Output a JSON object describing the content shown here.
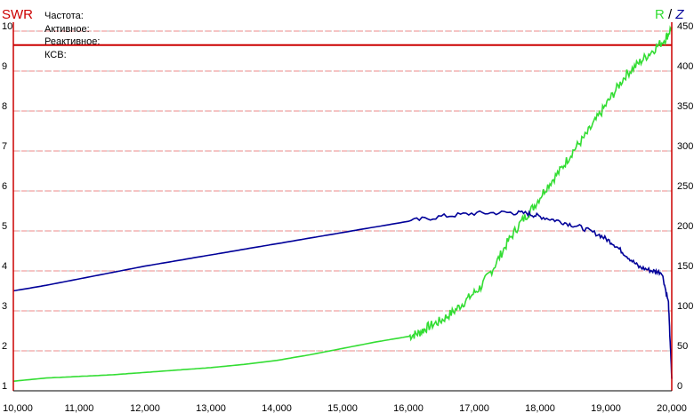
{
  "chart_data": {
    "type": "line",
    "left_axis_title": "SWR",
    "right_axis_title_r": "R",
    "right_axis_title_sep": " / ",
    "right_axis_title_z": "Z",
    "readout_labels": [
      "Частота:",
      "Активное:",
      "Реактивное:",
      "КСВ:"
    ],
    "xlim": [
      10000,
      20000
    ],
    "x_ticks": [
      "10,000",
      "11,000",
      "12,000",
      "13,000",
      "14,000",
      "15,000",
      "16,000",
      "17,000",
      "18,000",
      "19,000",
      "20,000"
    ],
    "y_left_lim": [
      1,
      10
    ],
    "y_left_ticks": [
      "1",
      "2",
      "3",
      "4",
      "5",
      "6",
      "7",
      "8",
      "9",
      "10"
    ],
    "y_right_lim": [
      0,
      450
    ],
    "y_right_ticks": [
      "0",
      "50",
      "100",
      "150",
      "200",
      "250",
      "300",
      "350",
      "400",
      "450"
    ],
    "grid": true,
    "swr_marker": 9.65,
    "colors": {
      "swr": "#cc0000",
      "r_series": "#33dd33",
      "z_series": "#000099",
      "grid_left": "#ee8888",
      "grid_right": "#bbbbbb",
      "axis_r": "#33dd33",
      "axis_z": "#000099"
    },
    "series": [
      {
        "name": "R",
        "axis": "right",
        "x": [
          10000,
          10500,
          11000,
          11500,
          12000,
          12500,
          13000,
          13500,
          14000,
          14500,
          15000,
          15500,
          16000,
          16150,
          16300,
          16500,
          16700,
          16900,
          17100,
          17300,
          17500,
          17700,
          17900,
          18100,
          18300,
          18500,
          18700,
          18900,
          19100,
          19300,
          19500,
          19700,
          19900,
          20000
        ],
        "values": [
          12,
          16,
          18,
          20,
          23,
          26,
          29,
          33,
          38,
          45,
          53,
          61,
          68,
          72,
          80,
          88,
          100,
          115,
          130,
          155,
          185,
          210,
          230,
          255,
          275,
          300,
          320,
          345,
          370,
          395,
          410,
          425,
          440,
          455
        ],
        "noise": 6
      },
      {
        "name": "Z",
        "axis": "right",
        "x": [
          10000,
          10500,
          11000,
          11500,
          12000,
          12500,
          13000,
          13500,
          14000,
          14500,
          15000,
          15500,
          16000,
          16500,
          17000,
          17500,
          17800,
          18000,
          18300,
          18600,
          18900,
          19100,
          19300,
          19500,
          19700,
          19850,
          19950,
          20000
        ],
        "values": [
          125,
          132,
          140,
          148,
          156,
          163,
          170,
          177,
          184,
          191,
          198,
          205,
          212,
          218,
          222,
          223,
          222,
          218,
          212,
          205,
          195,
          185,
          170,
          155,
          150,
          148,
          110,
          15
        ],
        "noise": 3
      }
    ]
  }
}
